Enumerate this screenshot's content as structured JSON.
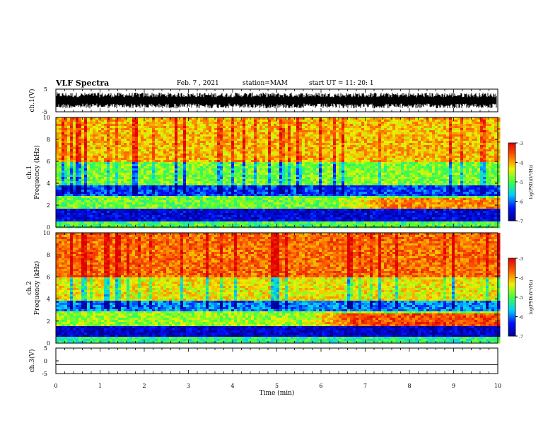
{
  "header": {
    "title": "VLF Spectra",
    "date": "Feb. 7 , 2021",
    "station": "station=MAM",
    "start": "start  UT =   11: 20: 1"
  },
  "chart_data": [
    {
      "type": "line",
      "panel": "ch1-waveform",
      "ylabel": "ch.1(V)",
      "ylim": [
        -5,
        5
      ],
      "yticks": [
        "5",
        "-5"
      ],
      "xlim": [
        0,
        10
      ],
      "description_values": {
        "amplitude_range": [
          -3.5,
          3.5
        ]
      }
    },
    {
      "type": "heatmap",
      "panel": "ch1-spectrogram",
      "ylabel": "ch.1\nFrequency (kHz)",
      "ylabel_line1": "ch.1",
      "ylabel_line2": "Frequency  (kHz)",
      "ylim": [
        0,
        10
      ],
      "yticks": [
        "0",
        "2",
        "4",
        "6",
        "8",
        "10"
      ],
      "xlim": [
        0,
        10
      ],
      "colorbar": {
        "label": "log(PSD)(V²/Hz)",
        "range": [
          -7,
          -3
        ],
        "ticks": [
          "-3",
          "-4",
          "-5",
          "-6",
          "-7"
        ]
      },
      "bands": [
        {
          "freq": [
            0.0,
            0.6
          ],
          "level": -5.0
        },
        {
          "freq": [
            0.6,
            1.6
          ],
          "level": -6.6
        },
        {
          "freq": [
            1.6,
            2.8
          ],
          "level": -4.9
        },
        {
          "freq": [
            2.8,
            3.8
          ],
          "level": -6.2
        },
        {
          "freq": [
            3.8,
            6.0
          ],
          "level": -4.8
        },
        {
          "freq": [
            6.0,
            10.0
          ],
          "level": -4.1
        }
      ],
      "enhancement": {
        "start_min": 6.2,
        "freq": [
          1.7,
          2.6
        ],
        "level": -3.8
      }
    },
    {
      "type": "heatmap",
      "panel": "ch2-spectrogram",
      "ylabel_line1": "ch.2",
      "ylabel_line2": "Frequency  (kHz)",
      "ylim": [
        0,
        10
      ],
      "yticks": [
        "0",
        "2",
        "4",
        "6",
        "8",
        "10"
      ],
      "xlim": [
        0,
        10
      ],
      "colorbar": {
        "label": "log(PSD)(V²/Hz)",
        "range": [
          -7,
          -3
        ],
        "ticks": [
          "-3",
          "-4",
          "-5",
          "-6",
          "-7"
        ]
      },
      "bands": [
        {
          "freq": [
            0.0,
            0.6
          ],
          "level": -5.2
        },
        {
          "freq": [
            0.6,
            1.6
          ],
          "level": -6.7
        },
        {
          "freq": [
            1.6,
            2.8
          ],
          "level": -4.7
        },
        {
          "freq": [
            2.8,
            3.8
          ],
          "level": -5.9
        },
        {
          "freq": [
            3.8,
            6.0
          ],
          "level": -4.3
        },
        {
          "freq": [
            6.0,
            10.0
          ],
          "level": -3.7
        }
      ],
      "enhancement": {
        "start_min": 5.5,
        "freq": [
          1.5,
          2.7
        ],
        "level": -3.5
      }
    },
    {
      "type": "line",
      "panel": "ch3-waveform",
      "ylabel": "ch.3(V)",
      "ylim": [
        -5,
        5
      ],
      "yticks": [
        "5",
        "0",
        "-5"
      ],
      "xlim": [
        0,
        10
      ],
      "values": [
        [
          0,
          -1.5
        ],
        [
          10,
          -1.5
        ]
      ],
      "xlabel": "Time  (min)",
      "xticks": [
        "0",
        "1",
        "2",
        "3",
        "4",
        "5",
        "6",
        "7",
        "8",
        "9",
        "10"
      ]
    }
  ],
  "colors": {
    "colormap": [
      "#000090",
      "#0010ff",
      "#00d0ff",
      "#40ff40",
      "#f0f000",
      "#ff6000",
      "#e00000",
      "#ffffff"
    ]
  }
}
